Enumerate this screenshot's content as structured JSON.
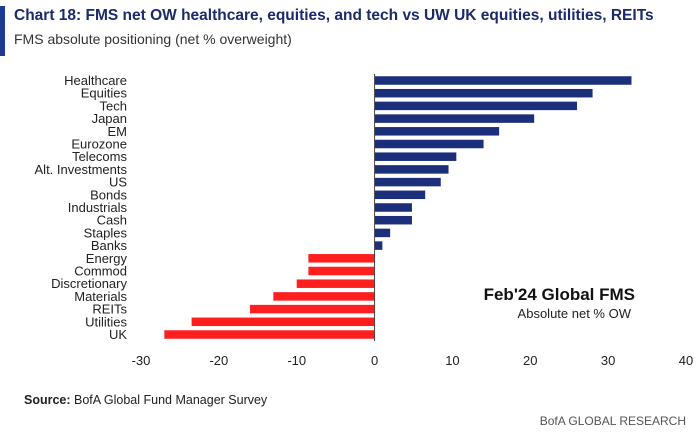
{
  "header": {
    "title": "Chart 18: FMS net OW healthcare, equities, and tech vs UW UK equities, utilities, REITs",
    "subtitle": "FMS absolute positioning (net % overweight)"
  },
  "source": {
    "label": "Source:",
    "text": " BofA Global Fund Manager Survey"
  },
  "footer": {
    "text": "BofA GLOBAL RESEARCH"
  },
  "annotation": {
    "title": "Feb'24 Global FMS",
    "subtitle": "Absolute net % OW"
  },
  "colors": {
    "accent": "#1f3a93",
    "positive": "#1c2f7a",
    "negative": "#ff1f1f",
    "title": "#1a2a6c"
  },
  "chart_data": {
    "type": "bar",
    "orientation": "horizontal",
    "categories": [
      "Healthcare",
      "Equities",
      "Tech",
      "Japan",
      "EM",
      "Eurozone",
      "Telecoms",
      "Alt. Investments",
      "US",
      "Bonds",
      "Industrials",
      "Cash",
      "Staples",
      "Banks",
      "Energy",
      "Commod",
      "Discretionary",
      "Materials",
      "REITs",
      "Utilities",
      "UK"
    ],
    "values": [
      33,
      28,
      26,
      20.5,
      16,
      14,
      10.5,
      9.5,
      8.5,
      6.5,
      4.8,
      4.8,
      2,
      1,
      -8.5,
      -8.5,
      -10,
      -13,
      -16,
      -23.5,
      -27
    ],
    "xlim": [
      -30,
      40
    ],
    "xticks": [
      -30,
      -20,
      -10,
      0,
      10,
      20,
      30,
      40
    ],
    "xlabel": "",
    "ylabel": "",
    "grid": false
  }
}
